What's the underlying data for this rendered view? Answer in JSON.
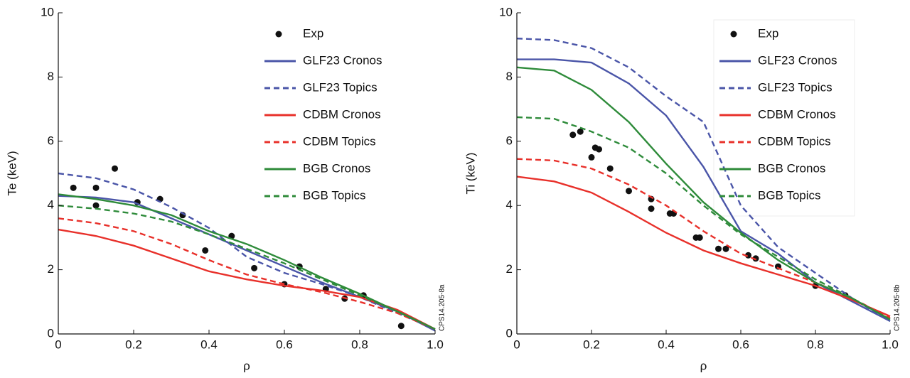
{
  "chart_data": [
    {
      "type": "line",
      "ylabel": "Te (keV)",
      "xlabel": "ρ",
      "note": "CPS14.205-8a",
      "xlim": [
        0,
        1
      ],
      "ylim": [
        0,
        10
      ],
      "xticks": [
        0,
        0.2,
        0.4,
        0.6,
        0.8,
        {
          "value": 1,
          "label": "1.0"
        }
      ],
      "yticks": [
        0,
        2,
        4,
        6,
        8,
        10
      ],
      "legend": "upper right",
      "legend_frame": false,
      "x": [
        0,
        0.1,
        0.2,
        0.3,
        0.4,
        0.5,
        0.6,
        0.7,
        0.8,
        0.9,
        1
      ],
      "series": [
        {
          "name": "Exp",
          "color": "#111111",
          "marker": "dot",
          "x": [
            0.04,
            0.1,
            0.1,
            0.15,
            0.21,
            0.27,
            0.33,
            0.39,
            0.46,
            0.52,
            0.6,
            0.64,
            0.71,
            0.76,
            0.81,
            0.91
          ],
          "values": [
            4.55,
            4.55,
            4.0,
            5.15,
            4.1,
            4.2,
            3.7,
            2.6,
            3.05,
            2.05,
            1.55,
            2.1,
            1.4,
            1.1,
            1.2,
            0.25
          ]
        },
        {
          "name": "GLF23 Cronos",
          "color": "#4a55a8",
          "dash": false,
          "values": [
            4.3,
            4.25,
            4.1,
            3.6,
            3.1,
            2.6,
            2.1,
            1.6,
            1.15,
            0.7,
            0.1
          ]
        },
        {
          "name": "GLF23 Topics",
          "color": "#4a55a8",
          "dash": true,
          "values": [
            5.0,
            4.85,
            4.5,
            3.95,
            3.3,
            2.4,
            1.9,
            1.55,
            1.15,
            0.65,
            0.15
          ]
        },
        {
          "name": "CDBM Cronos",
          "color": "#e8302a",
          "dash": false,
          "values": [
            3.25,
            3.05,
            2.75,
            2.35,
            1.95,
            1.7,
            1.5,
            1.35,
            1.15,
            0.75,
            0.15
          ]
        },
        {
          "name": "CDBM Topics",
          "color": "#e8302a",
          "dash": true,
          "values": [
            3.6,
            3.45,
            3.2,
            2.8,
            2.3,
            1.85,
            1.55,
            1.3,
            1.0,
            0.65,
            0.15
          ]
        },
        {
          "name": "BGB Cronos",
          "color": "#2e8b3a",
          "dash": false,
          "values": [
            4.35,
            4.2,
            4.0,
            3.7,
            3.2,
            2.8,
            2.3,
            1.75,
            1.25,
            0.7,
            0.15
          ]
        },
        {
          "name": "BGB Topics",
          "color": "#2e8b3a",
          "dash": true,
          "values": [
            4.0,
            3.9,
            3.75,
            3.5,
            3.1,
            2.65,
            2.2,
            1.7,
            1.2,
            0.7,
            0.15
          ]
        }
      ]
    },
    {
      "type": "line",
      "ylabel": "Ti (keV)",
      "xlabel": "ρ",
      "note": "CPS14.205-8b",
      "xlim": [
        0,
        1
      ],
      "ylim": [
        0,
        10
      ],
      "xticks": [
        0,
        0.2,
        0.4,
        0.6,
        0.8,
        {
          "value": 1,
          "label": "1.0"
        }
      ],
      "yticks": [
        0,
        2,
        4,
        6,
        8,
        10
      ],
      "legend": "upper right",
      "legend_frame": true,
      "x": [
        0,
        0.1,
        0.2,
        0.3,
        0.4,
        0.5,
        0.6,
        0.7,
        0.8,
        0.9,
        1
      ],
      "series": [
        {
          "name": "Exp",
          "color": "#111111",
          "marker": "dot",
          "x": [
            0.15,
            0.17,
            0.2,
            0.21,
            0.22,
            0.25,
            0.3,
            0.36,
            0.36,
            0.41,
            0.42,
            0.48,
            0.49,
            0.54,
            0.56,
            0.62,
            0.64,
            0.7,
            0.8,
            0.88
          ],
          "values": [
            6.2,
            6.3,
            5.5,
            5.8,
            5.75,
            5.15,
            4.45,
            3.9,
            4.2,
            3.75,
            3.75,
            3.0,
            3.0,
            2.65,
            2.65,
            2.45,
            2.35,
            2.1,
            1.5,
            1.2
          ]
        },
        {
          "name": "GLF23 Cronos",
          "color": "#4a55a8",
          "dash": false,
          "values": [
            8.55,
            8.55,
            8.45,
            7.8,
            6.8,
            5.2,
            3.2,
            2.5,
            1.6,
            1.0,
            0.4
          ]
        },
        {
          "name": "GLF23 Topics",
          "color": "#4a55a8",
          "dash": true,
          "values": [
            9.2,
            9.15,
            8.9,
            8.3,
            7.4,
            6.6,
            4.0,
            2.7,
            1.9,
            1.1,
            0.4
          ]
        },
        {
          "name": "CDBM Cronos",
          "color": "#e8302a",
          "dash": false,
          "values": [
            4.9,
            4.75,
            4.4,
            3.8,
            3.15,
            2.6,
            2.2,
            1.85,
            1.5,
            1.05,
            0.55
          ]
        },
        {
          "name": "CDBM Topics",
          "color": "#e8302a",
          "dash": true,
          "values": [
            5.45,
            5.4,
            5.15,
            4.65,
            4.0,
            3.2,
            2.5,
            2.05,
            1.6,
            1.1,
            0.5
          ]
        },
        {
          "name": "BGB Cronos",
          "color": "#2e8b3a",
          "dash": false,
          "values": [
            8.3,
            8.2,
            7.6,
            6.6,
            5.3,
            4.1,
            3.15,
            2.3,
            1.6,
            1.1,
            0.45
          ]
        },
        {
          "name": "BGB Topics",
          "color": "#2e8b3a",
          "dash": true,
          "values": [
            6.75,
            6.7,
            6.3,
            5.8,
            5.0,
            4.0,
            3.1,
            2.4,
            1.7,
            1.1,
            0.45
          ]
        }
      ]
    }
  ]
}
